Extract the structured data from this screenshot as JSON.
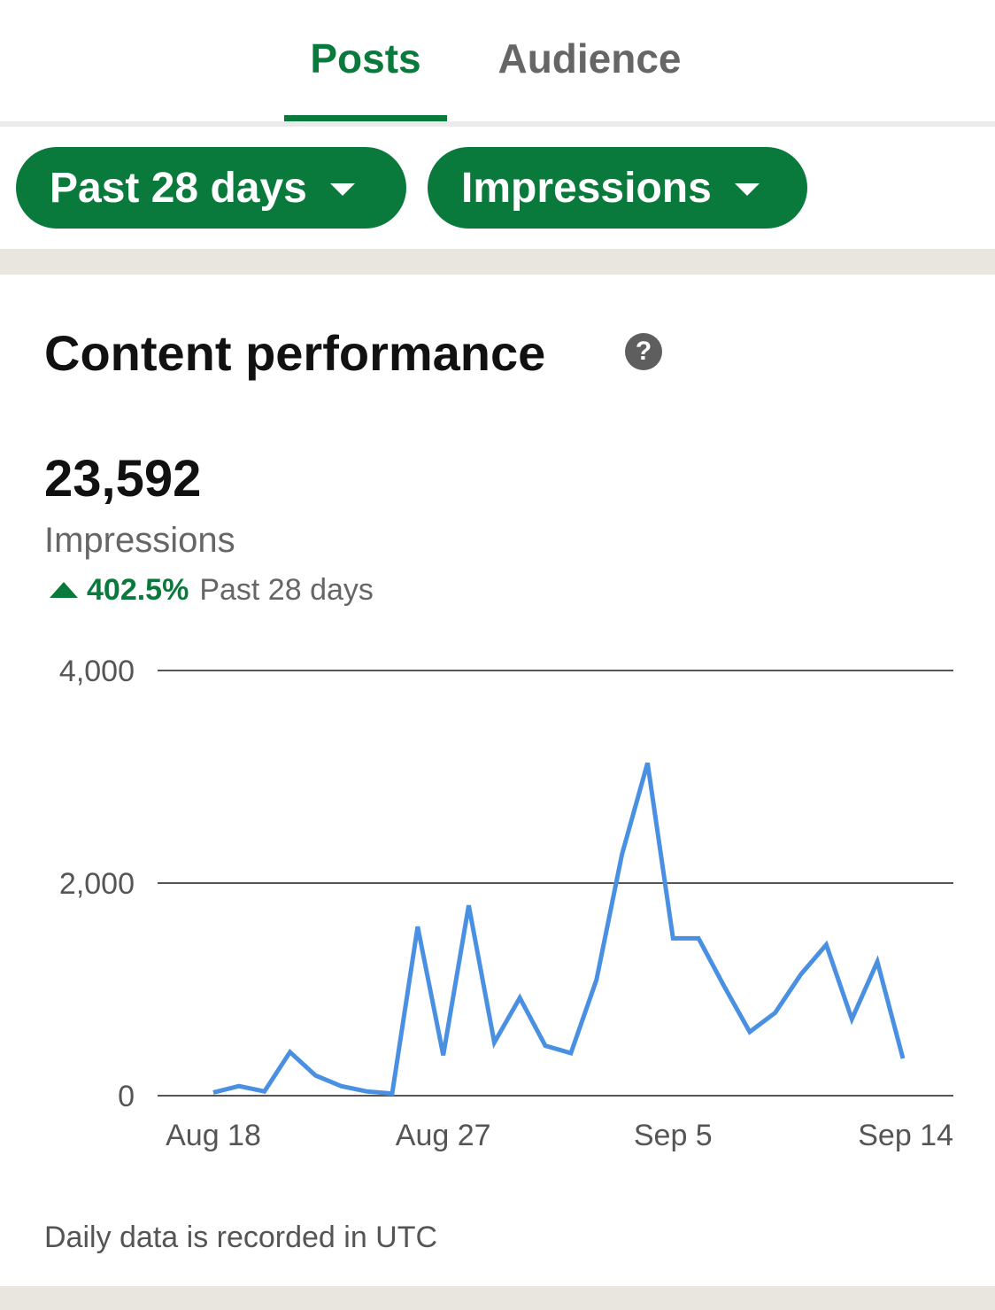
{
  "tabs": {
    "items": [
      {
        "label": "Posts",
        "active": true
      },
      {
        "label": "Audience",
        "active": false
      }
    ],
    "active_color": "#0a7a3c"
  },
  "filters": {
    "period": {
      "label": "Past 28 days",
      "icon": "caret-down-icon"
    },
    "metric": {
      "label": "Impressions",
      "icon": "caret-down-icon"
    },
    "color": "#0a7a3c"
  },
  "card": {
    "title": "Content performance",
    "help_icon": {
      "name": "help-icon",
      "glyph": "?"
    },
    "total": "23,592",
    "total_label": "Impressions",
    "change": {
      "value": "402.5%",
      "period": "Past 28 days",
      "direction": "up",
      "icon": "triangle-up-icon"
    },
    "footnote": "Daily data is recorded in UTC"
  },
  "chart_data": {
    "type": "line",
    "title": "",
    "xlabel": "",
    "ylabel": "",
    "ylim": [
      0,
      4000
    ],
    "y_ticks": [
      {
        "value": 0,
        "label": "0"
      },
      {
        "value": 2000,
        "label": "2,000"
      },
      {
        "value": 4000,
        "label": "4,000"
      }
    ],
    "x_ticks": [
      {
        "index": 0,
        "label": "Aug 18"
      },
      {
        "index": 9,
        "label": "Aug 27"
      },
      {
        "index": 18,
        "label": "Sep 5"
      },
      {
        "index": 27,
        "label": "Sep 14"
      }
    ],
    "grid": true,
    "legend": "none",
    "line_color": "#4a90e2",
    "series": [
      {
        "values": [
          30,
          90,
          40,
          410,
          190,
          90,
          40,
          20,
          1590,
          380,
          1790,
          500,
          920,
          470,
          400,
          1090,
          2270,
          3130,
          1480,
          1480,
          1030,
          600,
          780,
          1140,
          1420,
          720,
          1260,
          350
        ]
      }
    ]
  }
}
